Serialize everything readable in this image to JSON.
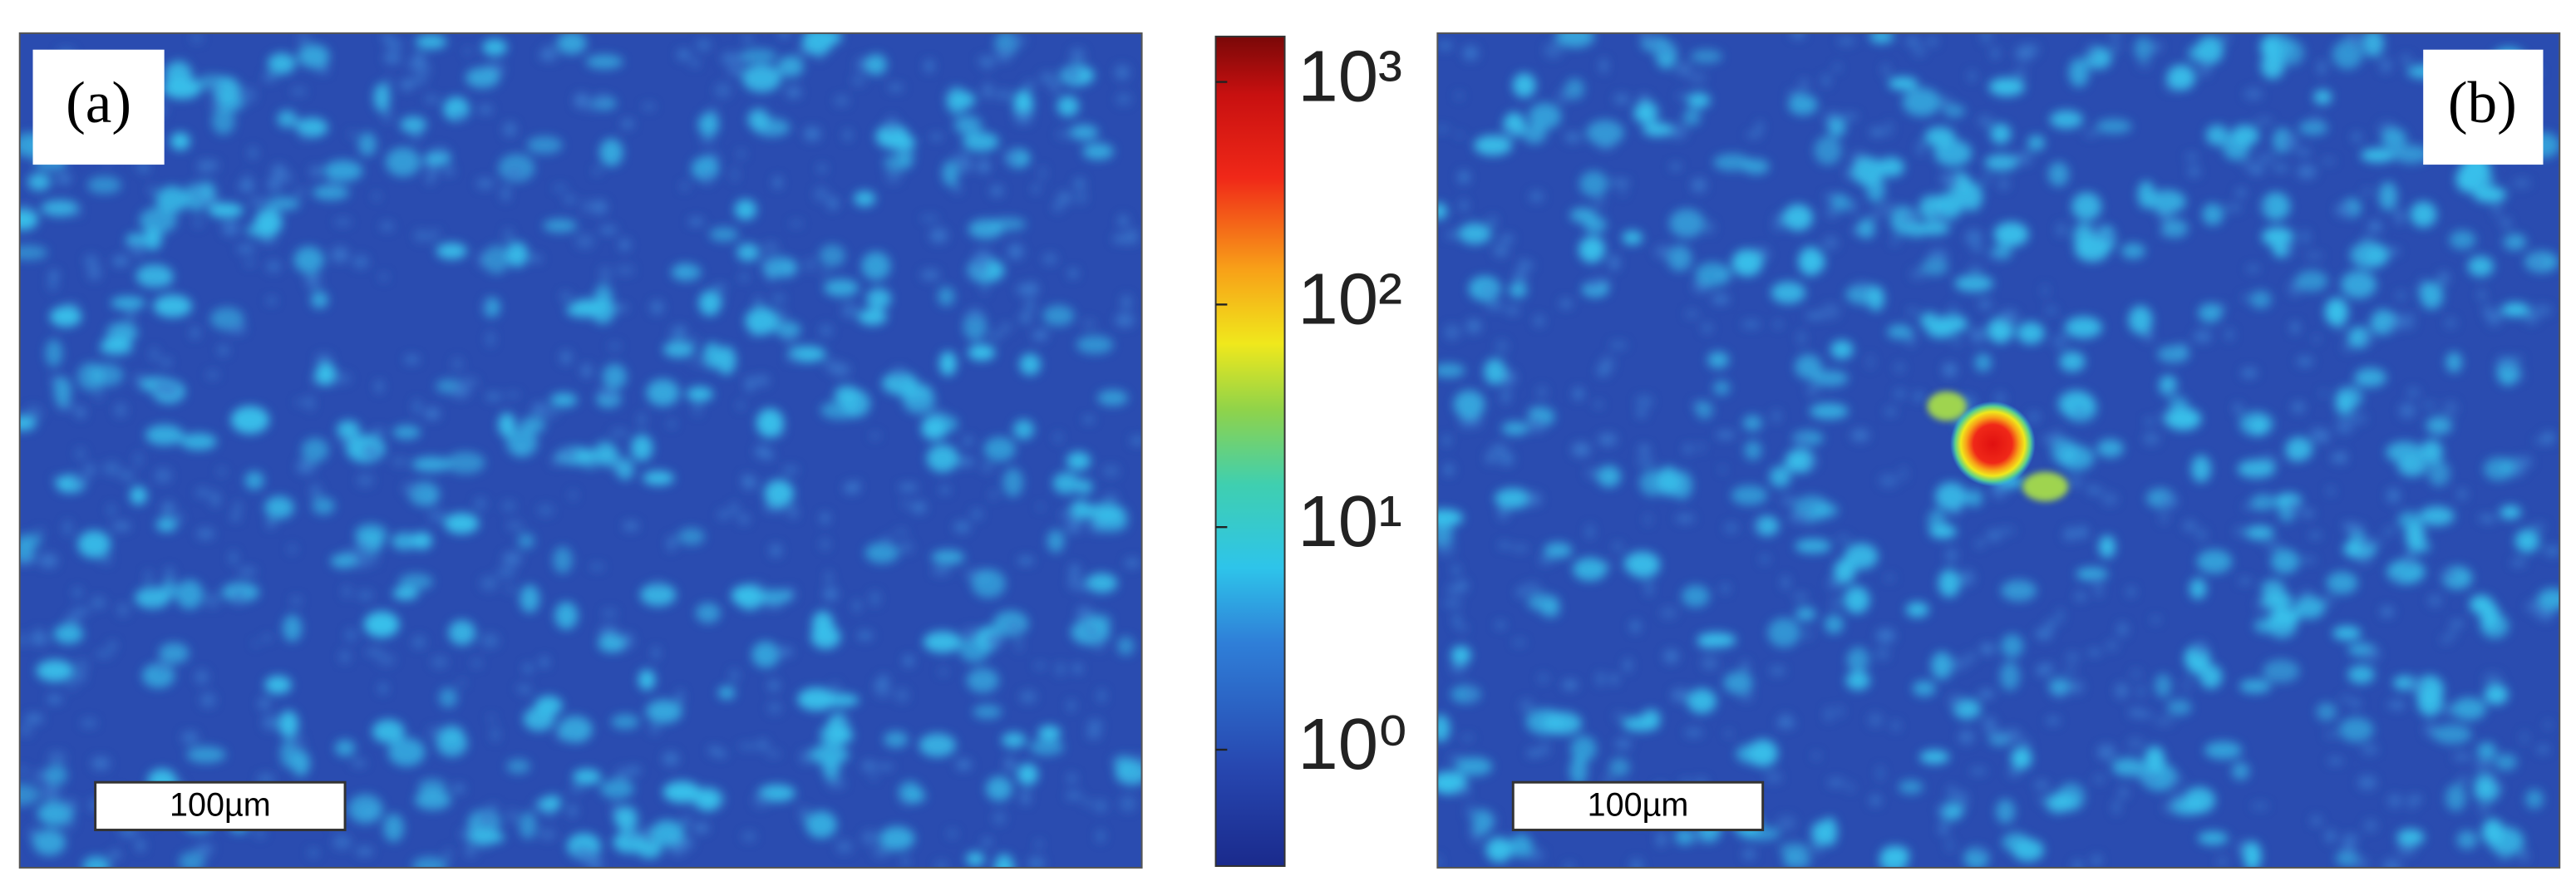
{
  "panels": [
    {
      "label": "(a)",
      "scale_bar": "100µm"
    },
    {
      "label": "(b)",
      "scale_bar": "100µm"
    }
  ],
  "colorbar": {
    "scale": "log",
    "range": [
      0.3,
      1600
    ],
    "ticks": [
      {
        "value": 1,
        "label": "10⁰"
      },
      {
        "value": 10,
        "label": "10¹"
      },
      {
        "value": 100,
        "label": "10²"
      },
      {
        "value": 1000,
        "label": "10³"
      }
    ]
  }
}
